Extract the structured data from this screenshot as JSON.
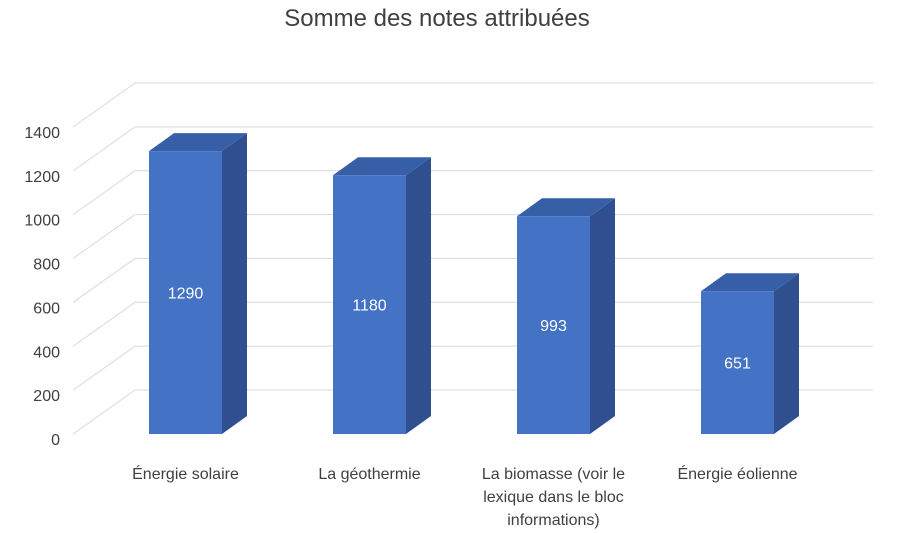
{
  "chart_data": {
    "type": "bar",
    "title": "Somme des notes attribuées",
    "categories": [
      [
        "Énergie solaire"
      ],
      [
        "La géothermie"
      ],
      [
        "La biomasse (voir le",
        "lexique dans le bloc",
        "informations)"
      ],
      [
        "Énergie éolienne"
      ]
    ],
    "values": [
      1290,
      1180,
      993,
      651
    ],
    "data_labels": [
      "1290",
      "1180",
      "993",
      "651"
    ],
    "y_ticks": [
      "0",
      "200",
      "400",
      "600",
      "800",
      "1000",
      "1200",
      "1400"
    ],
    "ylim": [
      0,
      1400
    ],
    "grid": true,
    "style": "3d-column",
    "colors": {
      "front": "#4472c4",
      "side": "#2f4f8f",
      "top": "#365fa8",
      "grid": "#d9d9d9"
    }
  }
}
